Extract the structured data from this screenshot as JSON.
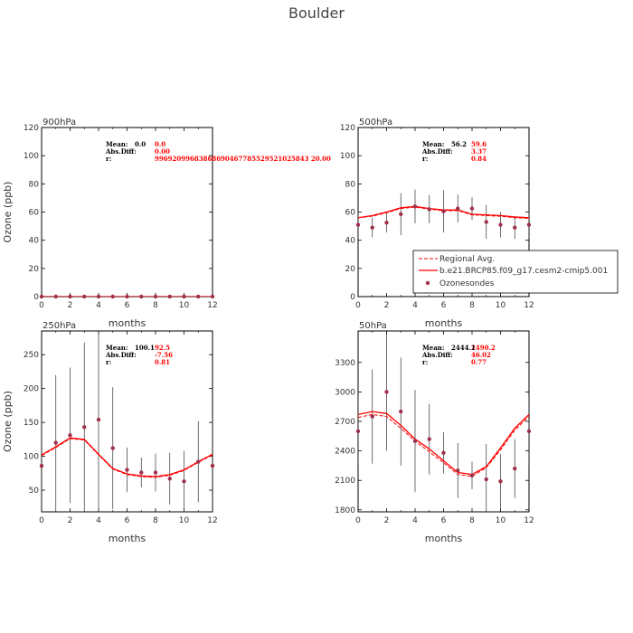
{
  "title": "Boulder",
  "stats_labels": {
    "mean": "Mean:",
    "absdiff": "Abs.Diff:",
    "r": "r:"
  },
  "legend": {
    "regional": "Regional Avg.",
    "model": "b.e21.BRCP85.f09_g17.cesm2-cmip5.001",
    "obs": "Ozonesondes"
  },
  "colors": {
    "model": "#ff0000",
    "obs": "#a0304a",
    "frame": "#000000"
  },
  "chart_data": [
    {
      "type": "line",
      "title": "900hPa",
      "xlabel": "months",
      "ylabel": "Ozone (ppb)",
      "xlim": [
        0,
        12
      ],
      "ylim": [
        0,
        120
      ],
      "xticks": [
        0,
        2,
        4,
        6,
        8,
        10,
        12
      ],
      "yticks": [
        0,
        20,
        40,
        60,
        80,
        100,
        120
      ],
      "stats": {
        "mean_obs": "0.0",
        "mean_model": "0.0",
        "absdiff": "0.00",
        "r": "99692099683868690467785529521025843 20.00"
      },
      "x": [
        0,
        1,
        2,
        3,
        4,
        5,
        6,
        7,
        8,
        9,
        10,
        11,
        12
      ],
      "model": [
        0,
        0,
        0,
        0,
        0,
        0,
        0,
        0,
        0,
        0,
        0,
        0,
        0
      ],
      "regional": [
        0,
        0,
        0,
        0,
        0,
        0,
        0,
        0,
        0,
        0,
        0,
        0,
        0
      ],
      "obs": [
        0,
        0,
        0,
        0,
        0,
        0,
        0,
        0,
        0,
        0,
        0,
        0,
        0
      ],
      "obs_err": [
        0,
        0,
        0,
        0,
        0,
        0,
        0,
        0,
        0,
        0,
        0,
        0,
        0
      ]
    },
    {
      "type": "line",
      "title": "500hPa",
      "xlabel": "months",
      "ylabel": "",
      "xlim": [
        0,
        12
      ],
      "ylim": [
        0,
        120
      ],
      "xticks": [
        0,
        2,
        4,
        6,
        8,
        10,
        12
      ],
      "yticks": [
        0,
        20,
        40,
        60,
        80,
        100,
        120
      ],
      "stats": {
        "mean_obs": "56.2",
        "mean_model": "59.6",
        "absdiff": "3.37",
        "r": "0.84"
      },
      "x": [
        0,
        1,
        2,
        3,
        4,
        5,
        6,
        7,
        8,
        9,
        10,
        11,
        12
      ],
      "model": [
        56,
        57.5,
        60,
        63,
        64,
        62.5,
        61.5,
        61.5,
        58.5,
        58,
        57.5,
        56.5,
        56
      ],
      "regional": [
        56,
        57,
        59.5,
        62.5,
        63.5,
        62,
        61,
        61,
        58,
        57.5,
        57,
        56,
        55.5
      ],
      "obs": [
        51,
        49,
        52.5,
        58.5,
        64,
        62,
        60.5,
        62.5,
        62.5,
        53,
        51,
        49,
        51
      ],
      "obs_err": [
        10,
        7,
        7,
        15,
        12,
        10,
        15,
        10,
        8,
        12,
        9,
        8,
        10
      ]
    },
    {
      "type": "line",
      "title": "250hPa",
      "xlabel": "months",
      "ylabel": "Ozone (ppb)",
      "xlim": [
        0,
        12
      ],
      "ylim": [
        18,
        285
      ],
      "xticks": [
        0,
        2,
        4,
        6,
        8,
        10,
        12
      ],
      "yticks": [
        50,
        100,
        150,
        200,
        250
      ],
      "stats": {
        "mean_obs": "100.1",
        "mean_model": "92.5",
        "absdiff": "-7.56",
        "r": "0.81"
      },
      "x": [
        0,
        1,
        2,
        3,
        4,
        5,
        6,
        7,
        8,
        9,
        10,
        11,
        12
      ],
      "model": [
        102,
        114,
        127,
        125,
        103,
        82,
        74,
        71,
        70,
        73,
        80,
        92,
        103
      ],
      "regional": [
        101,
        113,
        126,
        124,
        102,
        81,
        73,
        70,
        69,
        72,
        79,
        91,
        102
      ],
      "obs": [
        86,
        120,
        131,
        143,
        154,
        112,
        80,
        76,
        76,
        67,
        63,
        92,
        86
      ],
      "obs_err": [
        70,
        100,
        100,
        125,
        135,
        90,
        33,
        22,
        28,
        38,
        45,
        60,
        70
      ]
    },
    {
      "type": "line",
      "title": "50hPa",
      "xlabel": "months",
      "ylabel": "",
      "xlim": [
        0,
        12
      ],
      "ylim": [
        1780,
        3620
      ],
      "xticks": [
        0,
        2,
        4,
        6,
        8,
        10,
        12
      ],
      "yticks": [
        1800,
        2100,
        2400,
        2700,
        3000,
        3300
      ],
      "stats": {
        "mean_obs": "2444.1",
        "mean_model": "2490.2",
        "absdiff": "46.02",
        "r": "0.77"
      },
      "x": [
        0,
        1,
        2,
        3,
        4,
        5,
        6,
        7,
        8,
        9,
        10,
        11,
        12
      ],
      "model": [
        2770,
        2800,
        2780,
        2660,
        2520,
        2420,
        2300,
        2180,
        2160,
        2240,
        2430,
        2630,
        2770
      ],
      "regional": [
        2740,
        2770,
        2750,
        2630,
        2500,
        2390,
        2280,
        2160,
        2140,
        2230,
        2410,
        2610,
        2750
      ],
      "obs": [
        2600,
        2750,
        3000,
        2800,
        2500,
        2520,
        2380,
        2200,
        2150,
        2110,
        2090,
        2220,
        2600
      ],
      "obs_err": [
        350,
        480,
        600,
        550,
        520,
        360,
        210,
        280,
        140,
        360,
        280,
        300,
        350
      ]
    }
  ]
}
